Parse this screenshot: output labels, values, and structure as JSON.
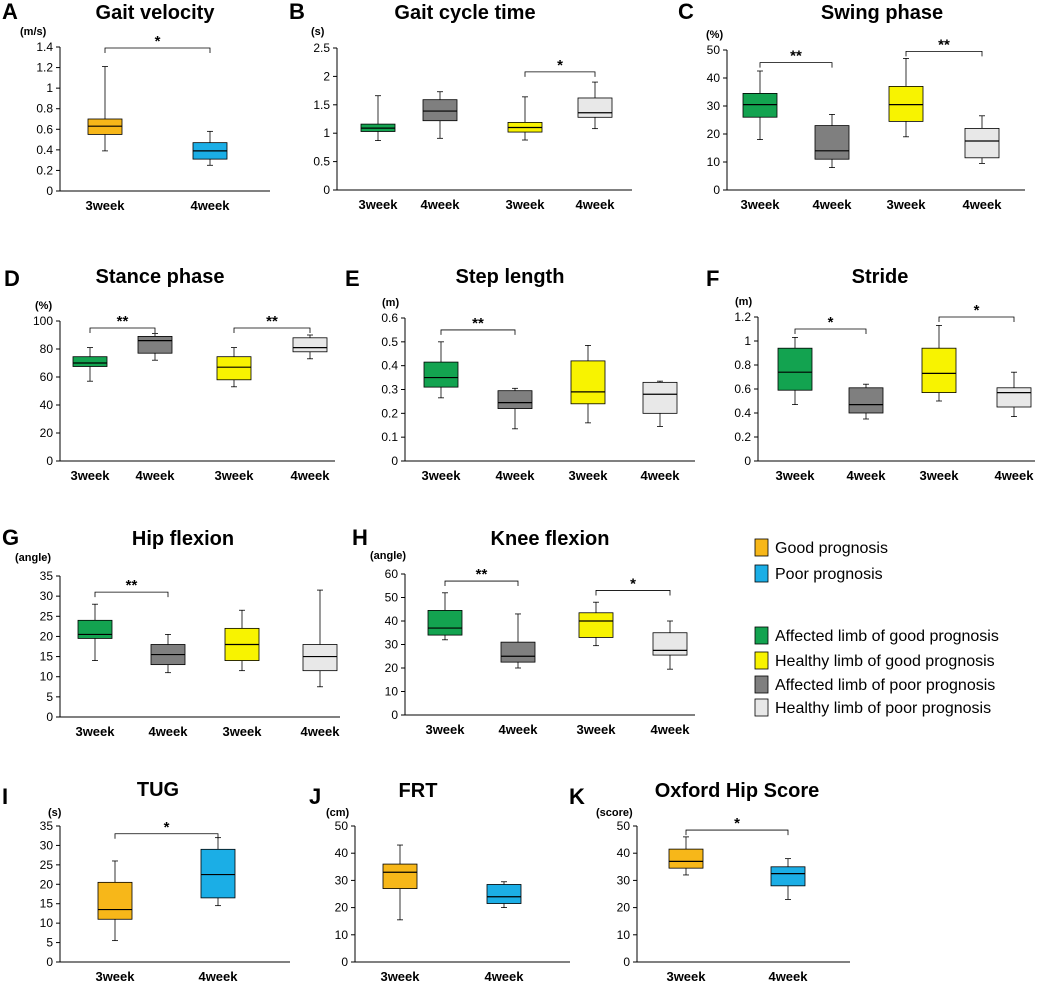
{
  "colors": {
    "good": "#F7B719",
    "poor": "#1BAEE6",
    "affected_good": "#13A350",
    "healthy_good": "#F8F300",
    "affected_poor": "#7F7F7F",
    "healthy_poor": "#E8E8E8"
  },
  "legend": {
    "prognosis": [
      {
        "label": "Good prognosis",
        "color_key": "good"
      },
      {
        "label": "Poor prognosis",
        "color_key": "poor"
      }
    ],
    "limbs": [
      {
        "label": "Affected limb of good prognosis",
        "color_key": "affected_good"
      },
      {
        "label": "Healthy limb of good prognosis",
        "color_key": "healthy_good"
      },
      {
        "label": "Affected limb of poor prognosis",
        "color_key": "affected_poor"
      },
      {
        "label": "Healthy limb of poor prognosis",
        "color_key": "healthy_poor"
      }
    ]
  },
  "chart_data": [
    {
      "id": "A",
      "type": "box",
      "title": "Gait velocity",
      "ylabel": "(m/s)",
      "ylim": [
        0,
        1.4
      ],
      "yticks": [
        "0",
        "0.2",
        "0.4",
        "0.6",
        "0.8",
        "1",
        "1.2",
        "1.4"
      ],
      "categories": [
        "3week",
        "4week"
      ],
      "boxes": [
        {
          "color_key": "good",
          "min": 0.39,
          "q1": 0.55,
          "median": 0.63,
          "q3": 0.7,
          "max": 1.21
        },
        {
          "color_key": "poor",
          "min": 0.25,
          "q1": 0.31,
          "median": 0.39,
          "q3": 0.47,
          "max": 0.58
        }
      ],
      "significance": [
        {
          "from": 0,
          "to": 1,
          "label": "*",
          "y": 1.39
        }
      ]
    },
    {
      "id": "B",
      "type": "box",
      "title": "Gait cycle time",
      "ylabel": "(s)",
      "ylim": [
        0,
        2.5
      ],
      "yticks": [
        "0",
        "0.5",
        "1",
        "1.5",
        "2",
        "2.5"
      ],
      "categories": [
        "3week",
        "4week",
        "3week",
        "4week"
      ],
      "boxes": [
        {
          "color_key": "affected_good",
          "min": 0.87,
          "q1": 1.03,
          "median": 1.09,
          "q3": 1.16,
          "max": 1.66
        },
        {
          "color_key": "affected_poor",
          "min": 0.91,
          "q1": 1.22,
          "median": 1.39,
          "q3": 1.59,
          "max": 1.73
        },
        {
          "color_key": "healthy_good",
          "min": 0.88,
          "q1": 1.02,
          "median": 1.1,
          "q3": 1.19,
          "max": 1.64
        },
        {
          "color_key": "healthy_poor",
          "min": 1.08,
          "q1": 1.28,
          "median": 1.36,
          "q3": 1.62,
          "max": 1.9
        }
      ],
      "significance": [
        {
          "from": 2,
          "to": 3,
          "label": "*",
          "y": 2.08
        }
      ]
    },
    {
      "id": "C",
      "type": "box",
      "title": "Swing phase",
      "ylabel": "(%)",
      "ylim": [
        0,
        50
      ],
      "yticks": [
        "0",
        "10",
        "20",
        "30",
        "40",
        "50"
      ],
      "categories": [
        "3week",
        "4week",
        "3week",
        "4week"
      ],
      "boxes": [
        {
          "color_key": "affected_good",
          "min": 18,
          "q1": 26,
          "median": 30.5,
          "q3": 34.5,
          "max": 42.5
        },
        {
          "color_key": "affected_poor",
          "min": 8,
          "q1": 11,
          "median": 14,
          "q3": 23,
          "max": 27
        },
        {
          "color_key": "healthy_good",
          "min": 19,
          "q1": 24.5,
          "median": 30.5,
          "q3": 37,
          "max": 47
        },
        {
          "color_key": "healthy_poor",
          "min": 9.5,
          "q1": 11.5,
          "median": 17.5,
          "q3": 22,
          "max": 26.5
        }
      ],
      "significance": [
        {
          "from": 0,
          "to": 1,
          "label": "**",
          "y": 45.5
        },
        {
          "from": 2,
          "to": 3,
          "label": "**",
          "y": 49.5
        }
      ]
    },
    {
      "id": "D",
      "type": "box",
      "title": "Stance phase",
      "ylabel": "(%)",
      "ylim": [
        0,
        100
      ],
      "yticks": [
        "0",
        "20",
        "40",
        "60",
        "80",
        "100"
      ],
      "categories": [
        "3week",
        "4week",
        "3week",
        "4week"
      ],
      "boxes": [
        {
          "color_key": "affected_good",
          "min": 57,
          "q1": 67.5,
          "median": 70,
          "q3": 74.5,
          "max": 81
        },
        {
          "color_key": "affected_poor",
          "min": 72,
          "q1": 77,
          "median": 86,
          "q3": 89,
          "max": 91
        },
        {
          "color_key": "healthy_good",
          "min": 53,
          "q1": 58,
          "median": 67,
          "q3": 74.5,
          "max": 81
        },
        {
          "color_key": "healthy_poor",
          "min": 73,
          "q1": 78,
          "median": 81,
          "q3": 88,
          "max": 90
        }
      ],
      "significance": [
        {
          "from": 0,
          "to": 1,
          "label": "**",
          "y": 95
        },
        {
          "from": 2,
          "to": 3,
          "label": "**",
          "y": 95
        }
      ]
    },
    {
      "id": "E",
      "type": "box",
      "title": "Step length",
      "ylabel": "(m)",
      "ylim": [
        0,
        0.6
      ],
      "yticks": [
        "0",
        "0.1",
        "0.2",
        "0.3",
        "0.4",
        "0.5",
        "0.6"
      ],
      "categories": [
        "3week",
        "4week",
        "3week",
        "4week"
      ],
      "boxes": [
        {
          "color_key": "affected_good",
          "min": 0.265,
          "q1": 0.31,
          "median": 0.35,
          "q3": 0.415,
          "max": 0.5
        },
        {
          "color_key": "affected_poor",
          "min": 0.135,
          "q1": 0.22,
          "median": 0.245,
          "q3": 0.295,
          "max": 0.305
        },
        {
          "color_key": "healthy_good",
          "min": 0.16,
          "q1": 0.24,
          "median": 0.29,
          "q3": 0.42,
          "max": 0.485
        },
        {
          "color_key": "healthy_poor",
          "min": 0.145,
          "q1": 0.2,
          "median": 0.28,
          "q3": 0.33,
          "max": 0.335
        }
      ],
      "significance": [
        {
          "from": 0,
          "to": 1,
          "label": "**",
          "y": 0.55
        }
      ]
    },
    {
      "id": "F",
      "type": "box",
      "title": "Stride",
      "ylabel": "(m)",
      "ylim": [
        0,
        1.2
      ],
      "yticks": [
        "0",
        "0.2",
        "0.4",
        "0.6",
        "0.8",
        "1",
        "1.2"
      ],
      "categories": [
        "3week",
        "4week",
        "3week",
        "4week"
      ],
      "boxes": [
        {
          "color_key": "affected_good",
          "min": 0.47,
          "q1": 0.59,
          "median": 0.74,
          "q3": 0.94,
          "max": 1.03
        },
        {
          "color_key": "affected_poor",
          "min": 0.35,
          "q1": 0.4,
          "median": 0.47,
          "q3": 0.61,
          "max": 0.64
        },
        {
          "color_key": "healthy_good",
          "min": 0.5,
          "q1": 0.57,
          "median": 0.73,
          "q3": 0.94,
          "max": 1.13
        },
        {
          "color_key": "healthy_poor",
          "min": 0.37,
          "q1": 0.45,
          "median": 0.57,
          "q3": 0.61,
          "max": 0.74
        }
      ],
      "significance": [
        {
          "from": 0,
          "to": 1,
          "label": "*",
          "y": 1.1
        },
        {
          "from": 2,
          "to": 3,
          "label": "*",
          "y": 1.2
        }
      ]
    },
    {
      "id": "G",
      "type": "box",
      "title": "Hip flexion",
      "ylabel": "(angle)",
      "ylim": [
        0,
        35
      ],
      "yticks": [
        "0",
        "5",
        "10",
        "15",
        "20",
        "25",
        "30",
        "35"
      ],
      "categories": [
        "3week",
        "4week",
        "3week",
        "4week"
      ],
      "boxes": [
        {
          "color_key": "affected_good",
          "min": 14,
          "q1": 19.5,
          "median": 20.5,
          "q3": 24,
          "max": 28
        },
        {
          "color_key": "affected_poor",
          "min": 11,
          "q1": 13,
          "median": 15.5,
          "q3": 18,
          "max": 20.5
        },
        {
          "color_key": "healthy_good",
          "min": 11.5,
          "q1": 14,
          "median": 18,
          "q3": 22,
          "max": 26.5
        },
        {
          "color_key": "healthy_poor",
          "min": 7.5,
          "q1": 11.5,
          "median": 15,
          "q3": 18,
          "max": 31.5
        }
      ],
      "significance": [
        {
          "from": 0,
          "to": 1,
          "label": "**",
          "y": 31
        }
      ]
    },
    {
      "id": "H",
      "type": "box",
      "title": "Knee flexion",
      "ylabel": "(angle)",
      "ylim": [
        0,
        60
      ],
      "yticks": [
        "0",
        "10",
        "20",
        "30",
        "40",
        "50",
        "60"
      ],
      "categories": [
        "3week",
        "4week",
        "3week",
        "4week"
      ],
      "boxes": [
        {
          "color_key": "affected_good",
          "min": 32,
          "q1": 34,
          "median": 37,
          "q3": 44.5,
          "max": 52
        },
        {
          "color_key": "affected_poor",
          "min": 20,
          "q1": 22.5,
          "median": 25,
          "q3": 31,
          "max": 43
        },
        {
          "color_key": "healthy_good",
          "min": 29.5,
          "q1": 33,
          "median": 40,
          "q3": 43.5,
          "max": 48
        },
        {
          "color_key": "healthy_poor",
          "min": 19.5,
          "q1": 25.5,
          "median": 27.5,
          "q3": 35,
          "max": 40
        }
      ],
      "significance": [
        {
          "from": 0,
          "to": 1,
          "label": "**",
          "y": 57
        },
        {
          "from": 2,
          "to": 3,
          "label": "*",
          "y": 53
        }
      ]
    },
    {
      "id": "I",
      "type": "box",
      "title": "TUG",
      "ylabel": "(s)",
      "ylim": [
        0,
        35
      ],
      "yticks": [
        "0",
        "5",
        "10",
        "15",
        "20",
        "25",
        "30",
        "35"
      ],
      "categories": [
        "3week",
        "4week"
      ],
      "boxes": [
        {
          "color_key": "good",
          "min": 5.5,
          "q1": 11,
          "median": 13.5,
          "q3": 20.5,
          "max": 26
        },
        {
          "color_key": "poor",
          "min": 14.5,
          "q1": 16.5,
          "median": 22.5,
          "q3": 29,
          "max": 32
        }
      ],
      "significance": [
        {
          "from": 0,
          "to": 1,
          "label": "*",
          "y": 33
        }
      ]
    },
    {
      "id": "J",
      "type": "box",
      "title": "FRT",
      "ylabel": "(cm)",
      "ylim": [
        0,
        50
      ],
      "yticks": [
        "0",
        "10",
        "20",
        "30",
        "40",
        "50"
      ],
      "categories": [
        "3week",
        "4week"
      ],
      "boxes": [
        {
          "color_key": "good",
          "min": 15.5,
          "q1": 27,
          "median": 33,
          "q3": 36,
          "max": 43
        },
        {
          "color_key": "poor",
          "min": 20,
          "q1": 21.5,
          "median": 24,
          "q3": 28.5,
          "max": 29.5
        }
      ],
      "significance": []
    },
    {
      "id": "K",
      "type": "box",
      "title": "Oxford Hip Score",
      "ylabel": "(score)",
      "ylim": [
        0,
        50
      ],
      "yticks": [
        "0",
        "10",
        "20",
        "30",
        "40",
        "50"
      ],
      "categories": [
        "3week",
        "4week"
      ],
      "boxes": [
        {
          "color_key": "good",
          "min": 32,
          "q1": 34.5,
          "median": 37,
          "q3": 41.5,
          "max": 46
        },
        {
          "color_key": "poor",
          "min": 23,
          "q1": 28,
          "median": 32.5,
          "q3": 35,
          "max": 38
        }
      ],
      "significance": [
        {
          "from": 0,
          "to": 1,
          "label": "*",
          "y": 48.5
        }
      ]
    }
  ]
}
